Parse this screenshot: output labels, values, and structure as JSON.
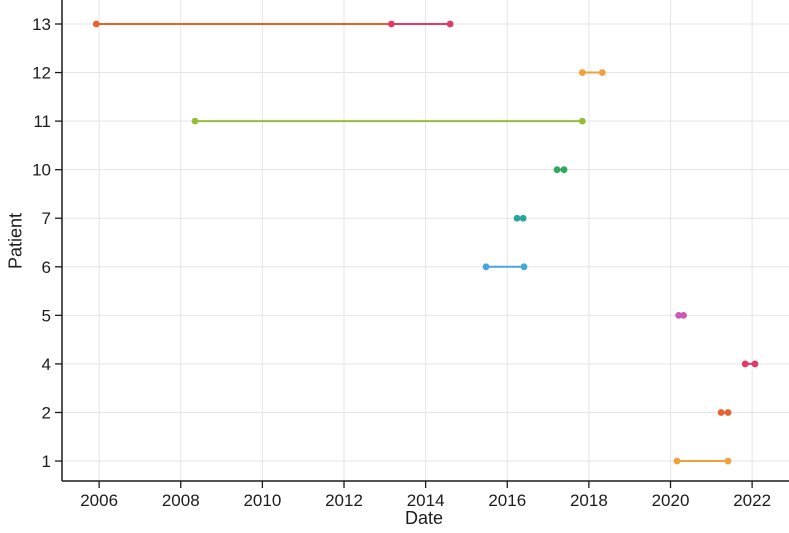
{
  "chart_data": {
    "type": "scatter",
    "subtype": "dumbbell-timeline",
    "title": "",
    "xlabel": "Date",
    "ylabel": "Patient",
    "x_ticks": [
      2006,
      2008,
      2010,
      2012,
      2014,
      2016,
      2018,
      2020,
      2022
    ],
    "xlim": [
      2005.09,
      2022.83
    ],
    "grid": true,
    "grid_color": "#e5e5e5",
    "axis_color": "#1a1a1a",
    "background": "#ffffff",
    "legend": "none",
    "y_tick_labels_bottom_to_top": [
      "1",
      "2",
      "4",
      "5",
      "6",
      "7",
      "10",
      "11",
      "12",
      "13"
    ],
    "rows_top_to_bottom": [
      {
        "patient": "13",
        "segments": [
          {
            "color": "#E8622D",
            "start": 2005.93,
            "end": 2013.16,
            "markers": [
              2005.93
            ]
          },
          {
            "color": "#E23A66",
            "start": 2013.16,
            "end": 2014.6,
            "markers": [
              2013.16,
              2014.6
            ]
          }
        ]
      },
      {
        "patient": "12",
        "segments": [
          {
            "color": "#F2A13A",
            "start": 2017.84,
            "end": 2018.33,
            "markers": [
              2017.84,
              2018.33
            ]
          }
        ]
      },
      {
        "patient": "11",
        "segments": [
          {
            "color": "#95BD38",
            "start": 2008.35,
            "end": 2017.84,
            "markers": [
              2008.35,
              2017.84
            ]
          }
        ]
      },
      {
        "patient": "10",
        "segments": [
          {
            "color": "#2FA861",
            "start": 2017.22,
            "end": 2017.39,
            "markers": [
              2017.22,
              2017.39
            ]
          }
        ]
      },
      {
        "patient": "7",
        "segments": [
          {
            "color": "#27A59E",
            "start": 2016.24,
            "end": 2016.39,
            "markers": [
              2016.24,
              2016.39
            ]
          }
        ]
      },
      {
        "patient": "6",
        "segments": [
          {
            "color": "#47A6DB",
            "start": 2015.48,
            "end": 2016.41,
            "markers": [
              2015.48,
              2016.41
            ]
          }
        ]
      },
      {
        "patient": "5",
        "segments": [
          {
            "color": "#C65BB0",
            "start": 2020.2,
            "end": 2020.32,
            "markers": [
              2020.2,
              2020.32
            ]
          }
        ]
      },
      {
        "patient": "4",
        "segments": [
          {
            "color": "#E23A66",
            "start": 2021.83,
            "end": 2022.07,
            "markers": [
              2021.83,
              2022.07
            ]
          }
        ]
      },
      {
        "patient": "2",
        "segments": [
          {
            "color": "#E8622D",
            "start": 2021.24,
            "end": 2021.41,
            "markers": [
              2021.24,
              2021.41
            ]
          }
        ]
      },
      {
        "patient": "1",
        "segments": [
          {
            "color": "#F2A13A",
            "start": 2020.16,
            "end": 2021.41,
            "markers": [
              2020.16,
              2021.41
            ]
          }
        ]
      }
    ]
  }
}
